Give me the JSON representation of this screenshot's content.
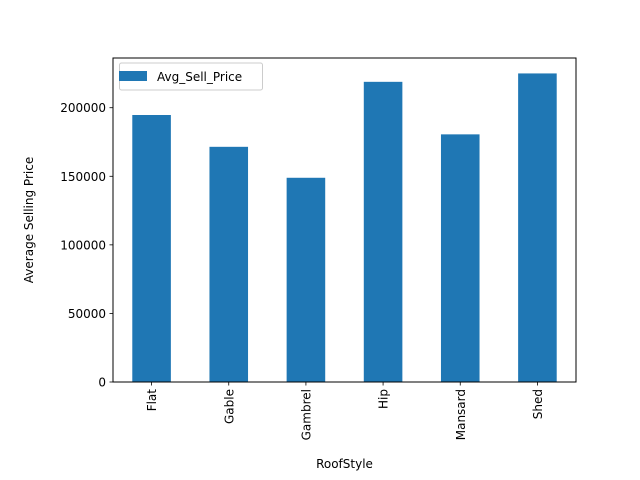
{
  "chart_data": {
    "type": "bar",
    "categories": [
      "Flat",
      "Gable",
      "Gambrel",
      "Hip",
      "Mansard",
      "Shed"
    ],
    "series": [
      {
        "name": "Avg_Sell_Price",
        "values": [
          194690,
          171483,
          148909,
          218876,
          180568,
          225000
        ],
        "color": "#1f77b4"
      }
    ],
    "xlabel": "RoofStyle",
    "ylabel": "Average Selling Price",
    "ylim": [
      0,
      236250
    ],
    "yticks": [
      0,
      50000,
      100000,
      150000,
      200000
    ],
    "grid": false,
    "legend": "upper left",
    "x_tick_rotation": "vertical"
  }
}
